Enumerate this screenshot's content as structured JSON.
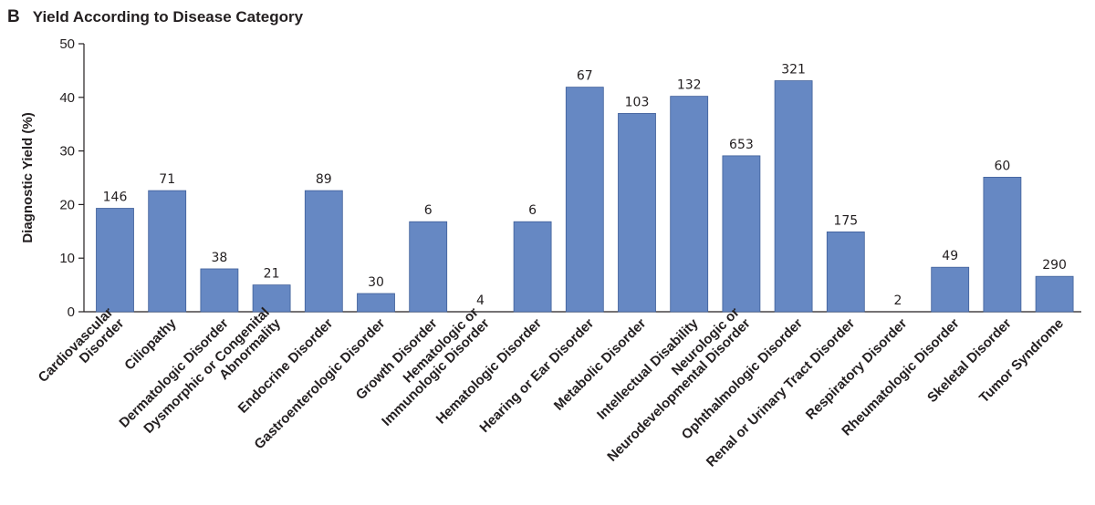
{
  "panel_letter": "B",
  "chart_data": {
    "type": "bar",
    "title": "Yield According to Disease Category",
    "xlabel": "",
    "ylabel": "Diagnostic Yield (%)",
    "ylim": [
      0,
      50
    ],
    "yticks": [
      0,
      10,
      20,
      30,
      40,
      50
    ],
    "grid": false,
    "legend": "none",
    "bar_color": "#6688c3",
    "categories": [
      [
        "Cardiovascular",
        "Disorder"
      ],
      [
        "Ciliopathy"
      ],
      [
        "Dermatologic Disorder"
      ],
      [
        "Dysmorphic or Congenital",
        "Abnormality"
      ],
      [
        "Endocrine Disorder"
      ],
      [
        "Gastroenterologic Disorder"
      ],
      [
        "Growth Disorder"
      ],
      [
        "Hematologic or",
        "Immunologic Disorder"
      ],
      [
        "Hematologic Disorder"
      ],
      [
        "Hearing or Ear Disorder"
      ],
      [
        "Metabolic Disorder"
      ],
      [
        "Intellectual Disability"
      ],
      [
        "Neurologic or",
        "Neurodevelopmental Disorder"
      ],
      [
        "Ophthalmologic Disorder"
      ],
      [
        "Renal or Urinary Tract Disorder"
      ],
      [
        "Respiratory Disorder"
      ],
      [
        "Rheumatologic Disorder"
      ],
      [
        "Skeletal Disorder"
      ],
      [
        "Tumor Syndrome"
      ]
    ],
    "values": [
      19.3,
      22.6,
      8.0,
      5.0,
      22.6,
      3.4,
      16.8,
      0.0,
      16.8,
      41.9,
      37.0,
      40.2,
      29.1,
      43.1,
      14.9,
      0.0,
      8.3,
      25.1,
      6.6
    ],
    "data_labels": [
      "146",
      "71",
      "38",
      "21",
      "89",
      "30",
      "6",
      "4",
      "6",
      "67",
      "103",
      "132",
      "653",
      "321",
      "175",
      "2",
      "49",
      "60",
      "290"
    ]
  }
}
